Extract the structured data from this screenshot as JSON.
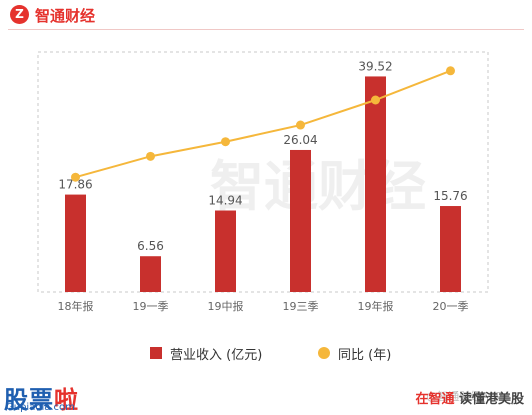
{
  "header": {
    "logo_text": "Z",
    "brand": "智通财经"
  },
  "chart_data": {
    "type": "bar",
    "categories": [
      "18年报",
      "19一季",
      "19中报",
      "19三季",
      "19年报",
      "20一季"
    ],
    "series": [
      {
        "name": "营业收入 (亿元)",
        "type": "bar",
        "values": [
          17.86,
          6.56,
          14.94,
          26.04,
          39.52,
          15.76
        ],
        "color": "#c8302d"
      },
      {
        "name": "同比 (年)",
        "type": "line",
        "values": [
          0.55,
          0.65,
          0.72,
          0.8,
          0.92,
          1.06
        ],
        "color": "#f5b73b"
      }
    ],
    "data_labels": [
      "17.86",
      "6.56",
      "14.94",
      "26.04",
      "39.52",
      "15.76"
    ],
    "bar_ylim": [
      0,
      44
    ],
    "line_ylim": [
      0,
      1.15
    ],
    "grid": false,
    "legend_position": "bottom"
  },
  "legend": {
    "bar_label": "营业收入 (亿元)",
    "line_label": "同比 (年)"
  },
  "watermark": {
    "text": "智通财经"
  },
  "footer": {
    "left_main": "股票",
    "left_accent": "啦",
    "site": "Gupiaola.com",
    "right_accent": "在智通",
    "right_dark": "读懂港美股",
    "faint": "@智通财经APP"
  }
}
